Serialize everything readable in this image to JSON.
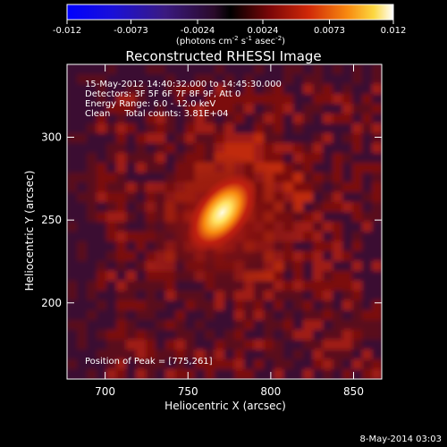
{
  "chart_data": {
    "type": "heatmap",
    "title": "Reconstructed RHESSI Image",
    "xlabel": "Heliocentric X (arcsec)",
    "ylabel": "Heliocentric Y (arcsec)",
    "xlim": [
      677,
      867
    ],
    "ylim": [
      154,
      344
    ],
    "x_ticks": [
      700,
      750,
      800,
      850
    ],
    "y_ticks": [
      200,
      250,
      300
    ],
    "peak": {
      "x": 775,
      "y": 261
    },
    "annotations": [
      "15-May-2012 14:40:32.000 to 14:45:30.000",
      "Detectors: 3F 5F 6F 7F 8F 9F, Att 0",
      "Energy Range: 6.0 - 12.0 keV",
      "Clean     Total counts: 3.81E+04"
    ],
    "peak_label": "Position of Peak = [775,261]",
    "colorbar": {
      "min": -0.012,
      "max": 0.012,
      "ticks": [
        "-0.012",
        "-0.0073",
        "-0.0024",
        "0.0024",
        "0.0073",
        "0.012"
      ],
      "unit_label": "(photons cm",
      "unit_exp1": "-2",
      "unit_mid": " s",
      "unit_exp2": "-1",
      "unit_mid2": " asec",
      "unit_exp3": "-2",
      "unit_end": ")"
    },
    "colors": {
      "background": "#000000",
      "map_low": "#3a0a3a",
      "map_mid": "#c8200a",
      "map_high": "#fffcd0"
    }
  },
  "footer": {
    "timestamp": "8-May-2014 03:03"
  }
}
